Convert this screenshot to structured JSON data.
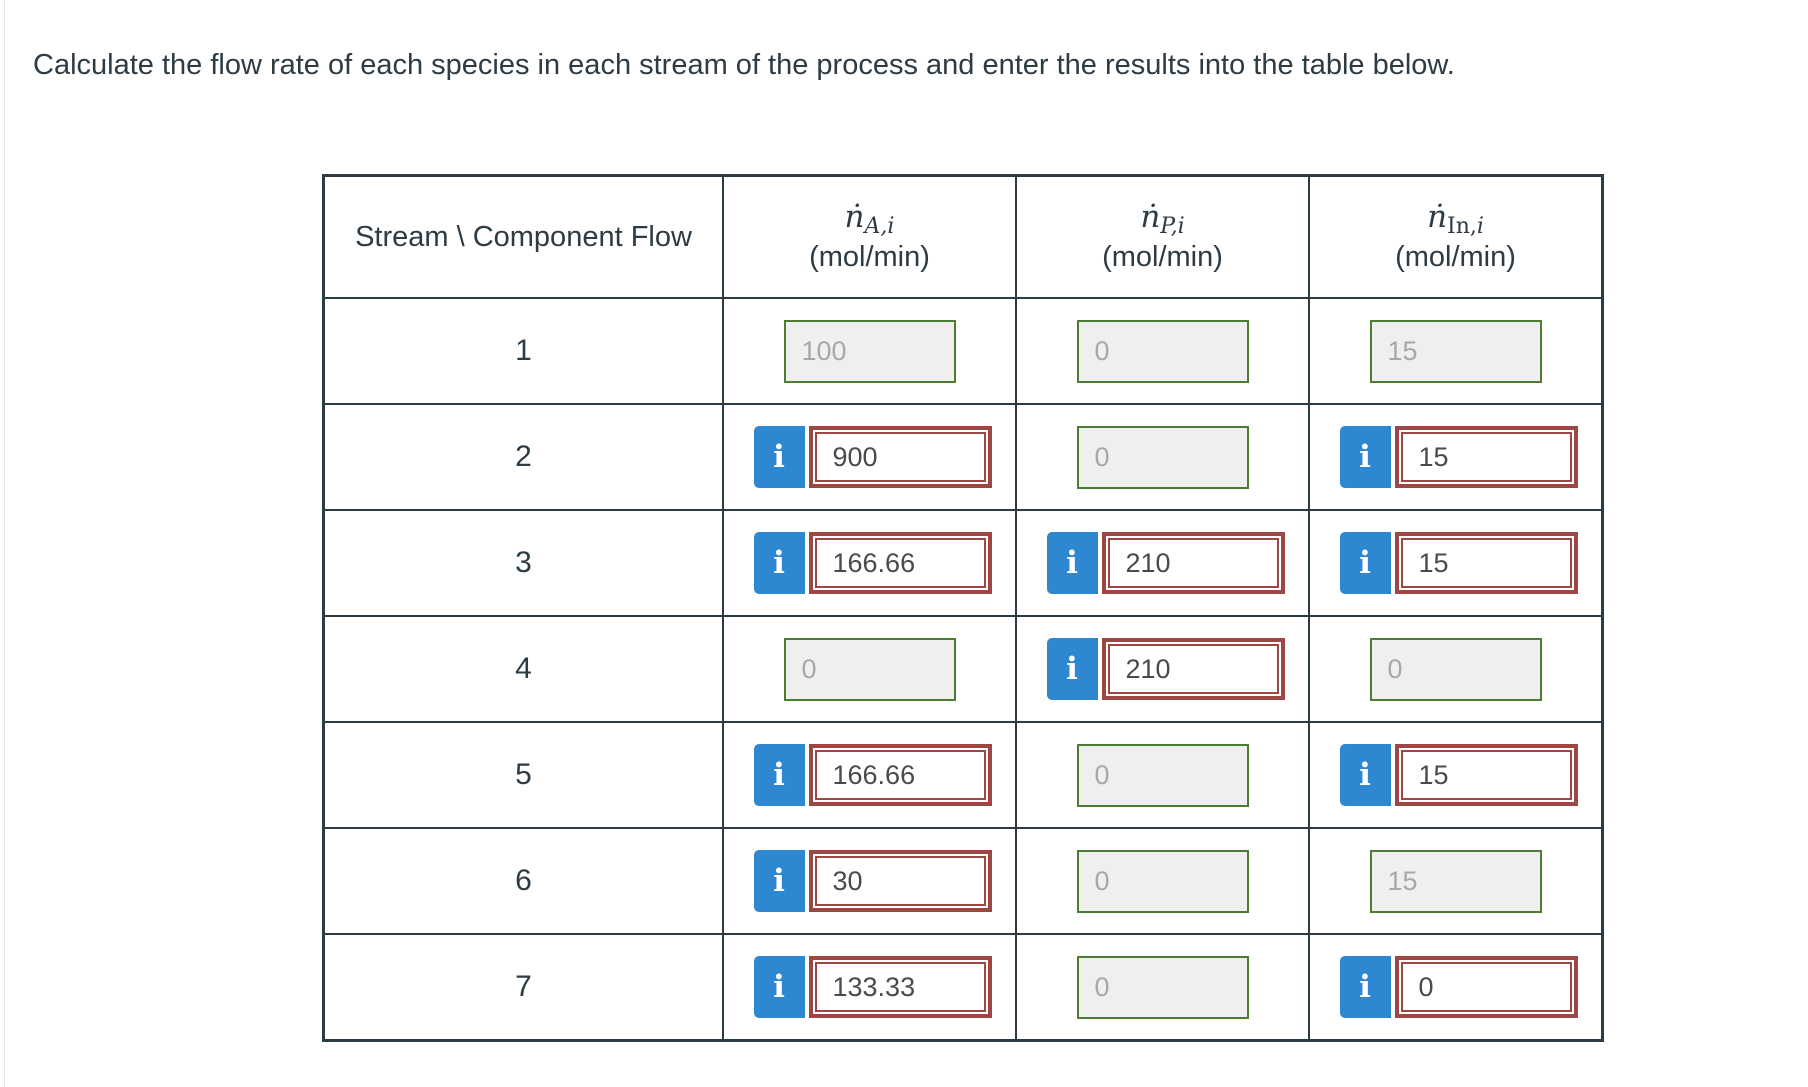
{
  "page": {
    "title": "Calculate the flow rate of each species in each stream of the process and enter the results into the table below."
  },
  "table": {
    "corner_header": "Stream \\ Component Flow",
    "columns": [
      {
        "base": "ṅ",
        "sub_upright": "",
        "sub_italic": "A,i",
        "unit": "(mol/min)"
      },
      {
        "base": "ṅ",
        "sub_upright": "",
        "sub_italic": "P,i",
        "unit": "(mol/min)"
      },
      {
        "base": "ṅ",
        "sub_upright": "In,",
        "sub_italic": "i",
        "unit": "(mol/min)"
      }
    ],
    "info_icon_glyph": "i",
    "rows": [
      {
        "stream": "1",
        "cells": [
          {
            "type": "locked",
            "value": "100"
          },
          {
            "type": "locked",
            "value": "0"
          },
          {
            "type": "locked",
            "value": "15"
          }
        ]
      },
      {
        "stream": "2",
        "cells": [
          {
            "type": "editable",
            "value": "900"
          },
          {
            "type": "locked",
            "value": "0"
          },
          {
            "type": "editable",
            "value": "15"
          }
        ]
      },
      {
        "stream": "3",
        "cells": [
          {
            "type": "editable",
            "value": "166.66"
          },
          {
            "type": "editable",
            "value": "210"
          },
          {
            "type": "editable",
            "value": "15"
          }
        ]
      },
      {
        "stream": "4",
        "cells": [
          {
            "type": "locked",
            "value": "0"
          },
          {
            "type": "editable",
            "value": "210"
          },
          {
            "type": "locked",
            "value": "0"
          }
        ]
      },
      {
        "stream": "5",
        "cells": [
          {
            "type": "editable",
            "value": "166.66"
          },
          {
            "type": "locked",
            "value": "0"
          },
          {
            "type": "editable",
            "value": "15"
          }
        ]
      },
      {
        "stream": "6",
        "cells": [
          {
            "type": "editable",
            "value": "30"
          },
          {
            "type": "locked",
            "value": "0"
          },
          {
            "type": "locked",
            "value": "15"
          }
        ]
      },
      {
        "stream": "7",
        "cells": [
          {
            "type": "editable",
            "value": "133.33"
          },
          {
            "type": "locked",
            "value": "0"
          },
          {
            "type": "editable",
            "value": "0"
          }
        ]
      }
    ]
  },
  "colors": {
    "text": "#2d3b45",
    "table_border": "#2d3b45",
    "locked_border": "#4d7c33",
    "locked_bg": "#efefef",
    "locked_text": "#a8a8a8",
    "error_border": "#9e4643",
    "info_blue": "#2e87d1",
    "value_text": "#4a4a4a"
  }
}
